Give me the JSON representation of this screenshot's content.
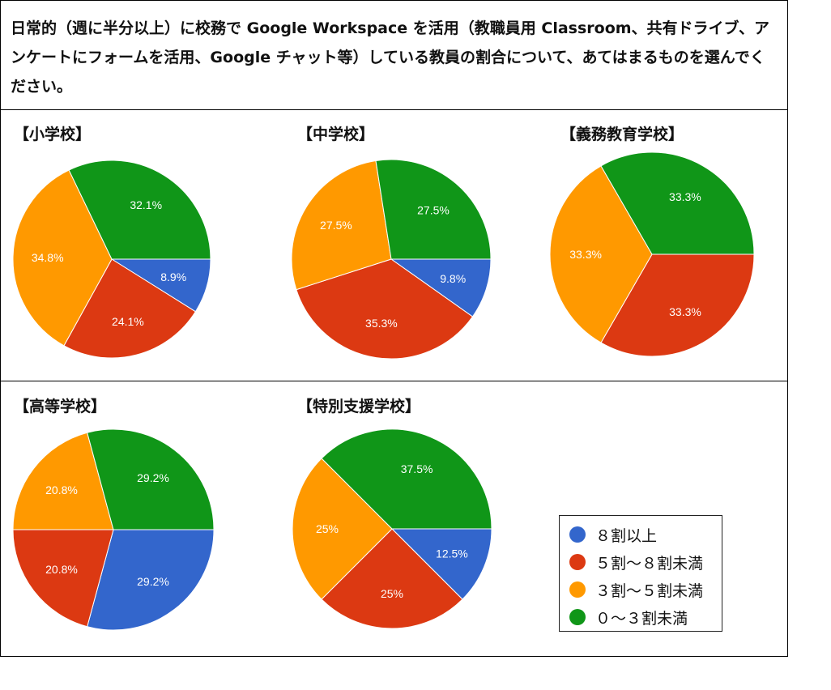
{
  "question": "日常的（週に半分以上）に校務で Google Workspace を活用（教職員用 Classroom、共有ドライブ、アンケートにフォームを活用、Google チャット等）している教員の割合について、あてはまるものを選んでください。",
  "legend": [
    {
      "label": "８割以上",
      "color": "#3366cc"
    },
    {
      "label": "５割～８割未満",
      "color": "#dc3912"
    },
    {
      "label": "３割～５割未満",
      "color": "#ff9900"
    },
    {
      "label": "０～３割未満",
      "color": "#109618"
    }
  ],
  "chart_data": [
    {
      "type": "pie",
      "title": "【小学校】",
      "categories": [
        "８割以上",
        "５割～８割未満",
        "３割～５割未満",
        "０～３割未満"
      ],
      "values": [
        8.9,
        24.1,
        34.8,
        32.1
      ],
      "labels": [
        "8.9%",
        "24.1%",
        "34.8%",
        "32.1%"
      ]
    },
    {
      "type": "pie",
      "title": "【中学校】",
      "categories": [
        "８割以上",
        "５割～８割未満",
        "３割～５割未満",
        "０～３割未満"
      ],
      "values": [
        9.8,
        35.3,
        27.5,
        27.5
      ],
      "labels": [
        "9.8%",
        "35.3%",
        "27.5%",
        "27.5%"
      ]
    },
    {
      "type": "pie",
      "title": "【義務教育学校】",
      "categories": [
        "８割以上",
        "５割～８割未満",
        "３割～５割未満",
        "０～３割未満"
      ],
      "values": [
        0,
        33.3,
        33.3,
        33.3
      ],
      "labels": [
        "",
        "33.3%",
        "33.3%",
        "33.3%"
      ]
    },
    {
      "type": "pie",
      "title": "【高等学校】",
      "categories": [
        "８割以上",
        "５割～８割未満",
        "３割～５割未満",
        "０～３割未満"
      ],
      "values": [
        29.2,
        20.8,
        20.8,
        29.2
      ],
      "labels": [
        "29.2%",
        "20.8%",
        "20.8%",
        "29.2%"
      ]
    },
    {
      "type": "pie",
      "title": "【特別支援学校】",
      "categories": [
        "８割以上",
        "５割～８割未満",
        "３割～５割未満",
        "０～３割未満"
      ],
      "values": [
        12.5,
        25,
        25,
        37.5
      ],
      "labels": [
        "12.5%",
        "25%",
        "25%",
        "37.5%"
      ]
    }
  ]
}
